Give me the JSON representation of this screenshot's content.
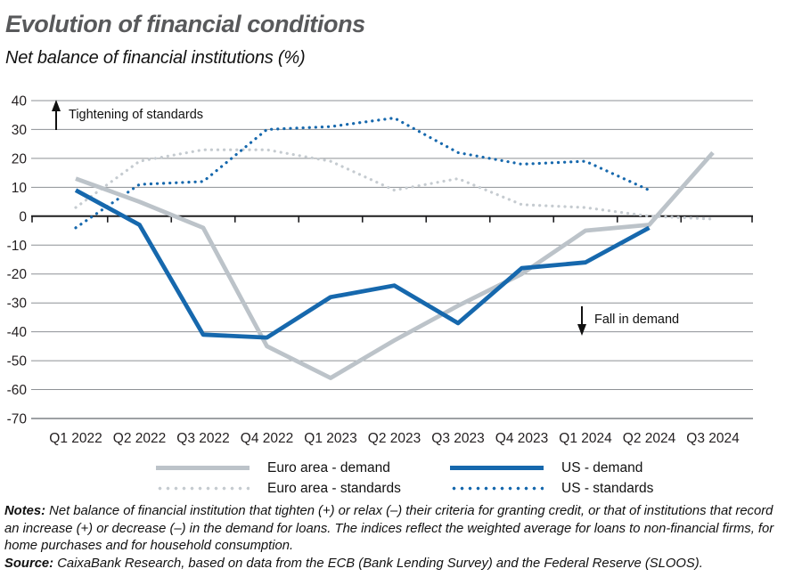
{
  "header": {
    "title": "Evolution of financial conditions",
    "subtitle": "Net balance of financial institutions (%)"
  },
  "chart_data": {
    "type": "line",
    "categories": [
      "Q1 2022",
      "Q2 2022",
      "Q3 2022",
      "Q4 2022",
      "Q1 2023",
      "Q2 2023",
      "Q3 2023",
      "Q4 2023",
      "Q1 2024",
      "Q2 2024",
      "Q3 2024"
    ],
    "series": [
      {
        "name": "Euro area - demand",
        "style": "solid",
        "color": "#bcc3c9",
        "values": [
          13,
          5,
          -4,
          -45,
          -56,
          -43,
          -31,
          -20,
          -5,
          -3,
          22
        ]
      },
      {
        "name": "Euro area - standards",
        "style": "dotted",
        "color": "#c5cbd0",
        "values": [
          3,
          19,
          23,
          23,
          19,
          9,
          13,
          4,
          3,
          0,
          -1
        ]
      },
      {
        "name": "US - demand",
        "style": "solid",
        "color": "#1668ad",
        "values": [
          9,
          -3,
          -41,
          -42,
          -28,
          -24,
          -37,
          -18,
          -16,
          -4,
          null
        ]
      },
      {
        "name": "US - standards",
        "style": "dotted",
        "color": "#1668ad",
        "values": [
          -4,
          11,
          12,
          30,
          31,
          34,
          22,
          18,
          19,
          9,
          null
        ]
      }
    ],
    "draw_order": [
      "Euro area - standards",
      "US - standards",
      "Euro area - demand",
      "US - demand"
    ],
    "ylim": [
      -70,
      40
    ],
    "y_ticks": [
      40,
      30,
      20,
      10,
      0,
      -10,
      -20,
      -30,
      -40,
      -50,
      -60,
      -70
    ],
    "grid": true,
    "legend_position": "bottom",
    "annotations": [
      {
        "text": "Tightening of standards",
        "arrow": "up"
      },
      {
        "text": "Fall in demand",
        "arrow": "down"
      }
    ]
  },
  "legend": {
    "items": [
      {
        "label": "Euro area - demand",
        "style": "solid",
        "color": "#bcc3c9"
      },
      {
        "label": "US - demand",
        "style": "solid",
        "color": "#1668ad"
      },
      {
        "label": "Euro area - standards",
        "style": "dotted",
        "color": "#c5cbd0"
      },
      {
        "label": "US - standards",
        "style": "dotted",
        "color": "#1668ad"
      }
    ]
  },
  "notes": {
    "notes_label": "Notes:",
    "notes_text": "Net balance of financial institution that tighten (+) or relax (–) their criteria for granting credit, or that of institutions that record an increase (+) or decrease (–) in the demand for loans. The indices reflect the weighted average for loans to non-financial firms, for home purchases and for household consumption.",
    "source_label": "Source:",
    "source_text": "CaixaBank Research, based on data from the ECB (Bank Lending Survey) and the Federal Reserve (SLOOS)."
  }
}
